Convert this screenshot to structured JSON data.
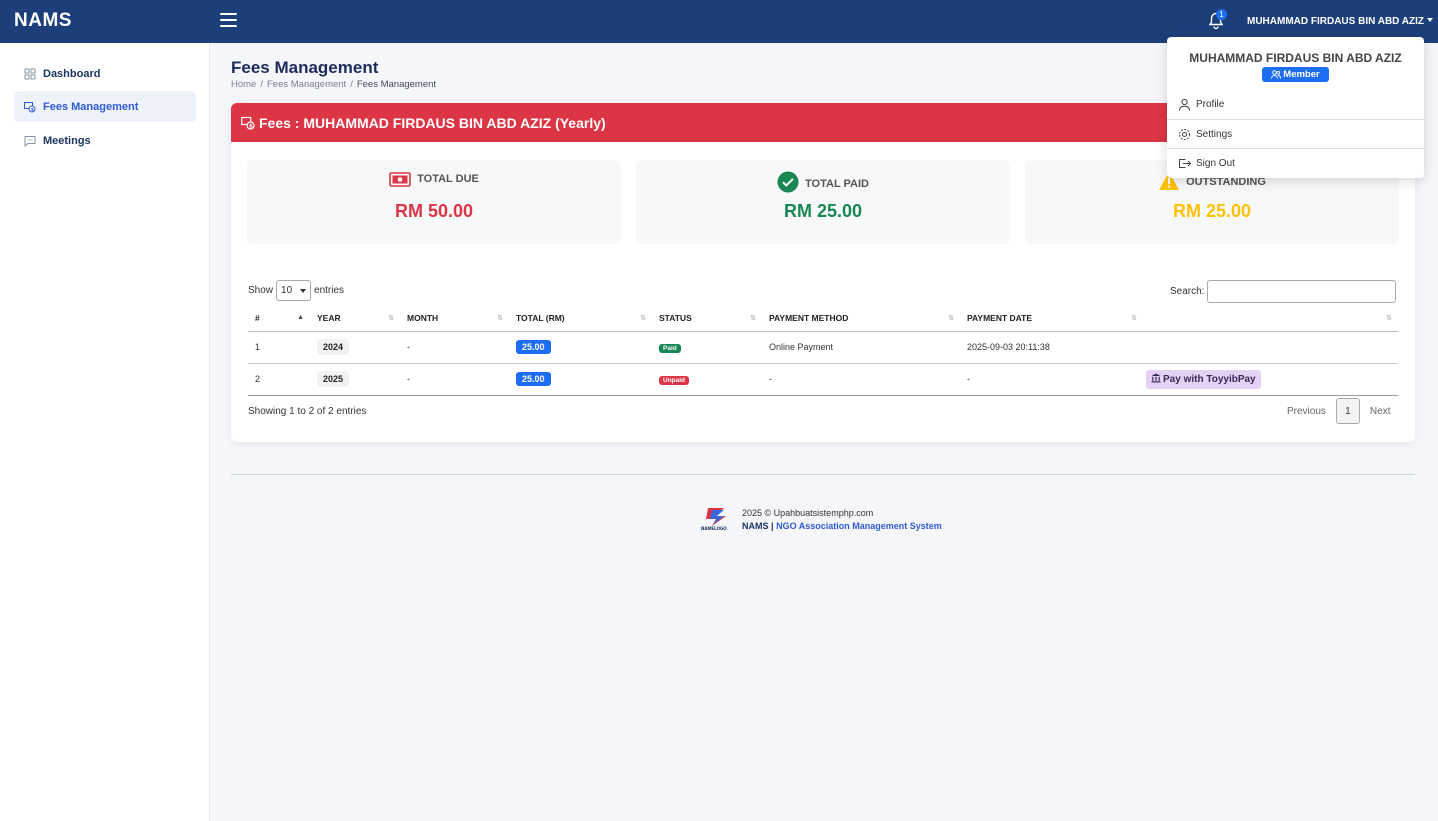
{
  "app": {
    "brand": "NAMS"
  },
  "header": {
    "notification_count": "1",
    "user_name": "MUHAMMAD FIRDAUS BIN ABD AZIZ"
  },
  "sidebar": {
    "items": [
      {
        "label": "Dashboard",
        "icon": "grid-icon",
        "active": false
      },
      {
        "label": "Fees Management",
        "icon": "money-bill-icon",
        "active": true
      },
      {
        "label": "Meetings",
        "icon": "chat-icon",
        "active": false
      }
    ]
  },
  "page": {
    "title": "Fees Management",
    "breadcrumb": [
      "Home",
      "Fees Management",
      "Fees Management"
    ]
  },
  "card": {
    "title": "Fees : MUHAMMAD FIRDAUS BIN ABD AZIZ (Yearly)",
    "stats": [
      {
        "label": "TOTAL DUE",
        "value": "RM 50.00",
        "color": "#dc3545",
        "icon": "money-bill-icon"
      },
      {
        "label": "TOTAL PAID",
        "value": "RM 25.00",
        "color": "#198754",
        "icon": "check-circle-icon"
      },
      {
        "label": "OUTSTANDING",
        "value": "RM 25.00",
        "color": "#ffc107",
        "icon": "warning-icon"
      }
    ]
  },
  "table": {
    "show_label": "Show",
    "entries_label": "entries",
    "page_size": "10",
    "search_label": "Search:",
    "search_value": "",
    "columns": [
      "#",
      "YEAR",
      "MONTH",
      "TOTAL (RM)",
      "STATUS",
      "PAYMENT METHOD",
      "PAYMENT DATE",
      ""
    ],
    "rows": [
      {
        "no": "1",
        "year": "2024",
        "month": "-",
        "total": "25.00",
        "status": "Paid",
        "method": "Online Payment",
        "date": "2025-09-03 20:11:38",
        "action": ""
      },
      {
        "no": "2",
        "year": "2025",
        "month": "-",
        "total": "25.00",
        "status": "Unpaid",
        "method": "-",
        "date": "-",
        "action": "Pay with ToyyibPay"
      }
    ],
    "showing": "Showing 1 to 2 of 2 entries",
    "pager": {
      "previous": "Previous",
      "current": "1",
      "next": "Next"
    }
  },
  "footer": {
    "logo_text": "NAMELOGO",
    "line1": "2025 © Upahbuatsistemphp.com",
    "app": "NAMS",
    "separator": "|",
    "system": "NGO Association Management System"
  },
  "user_menu": {
    "name": "MUHAMMAD FIRDAUS BIN ABD AZIZ",
    "role": "Member",
    "items": [
      {
        "label": "Profile",
        "icon": "user-icon"
      },
      {
        "label": "Settings",
        "icon": "gear-icon"
      },
      {
        "label": "Sign Out",
        "icon": "sign-out-icon"
      }
    ]
  }
}
